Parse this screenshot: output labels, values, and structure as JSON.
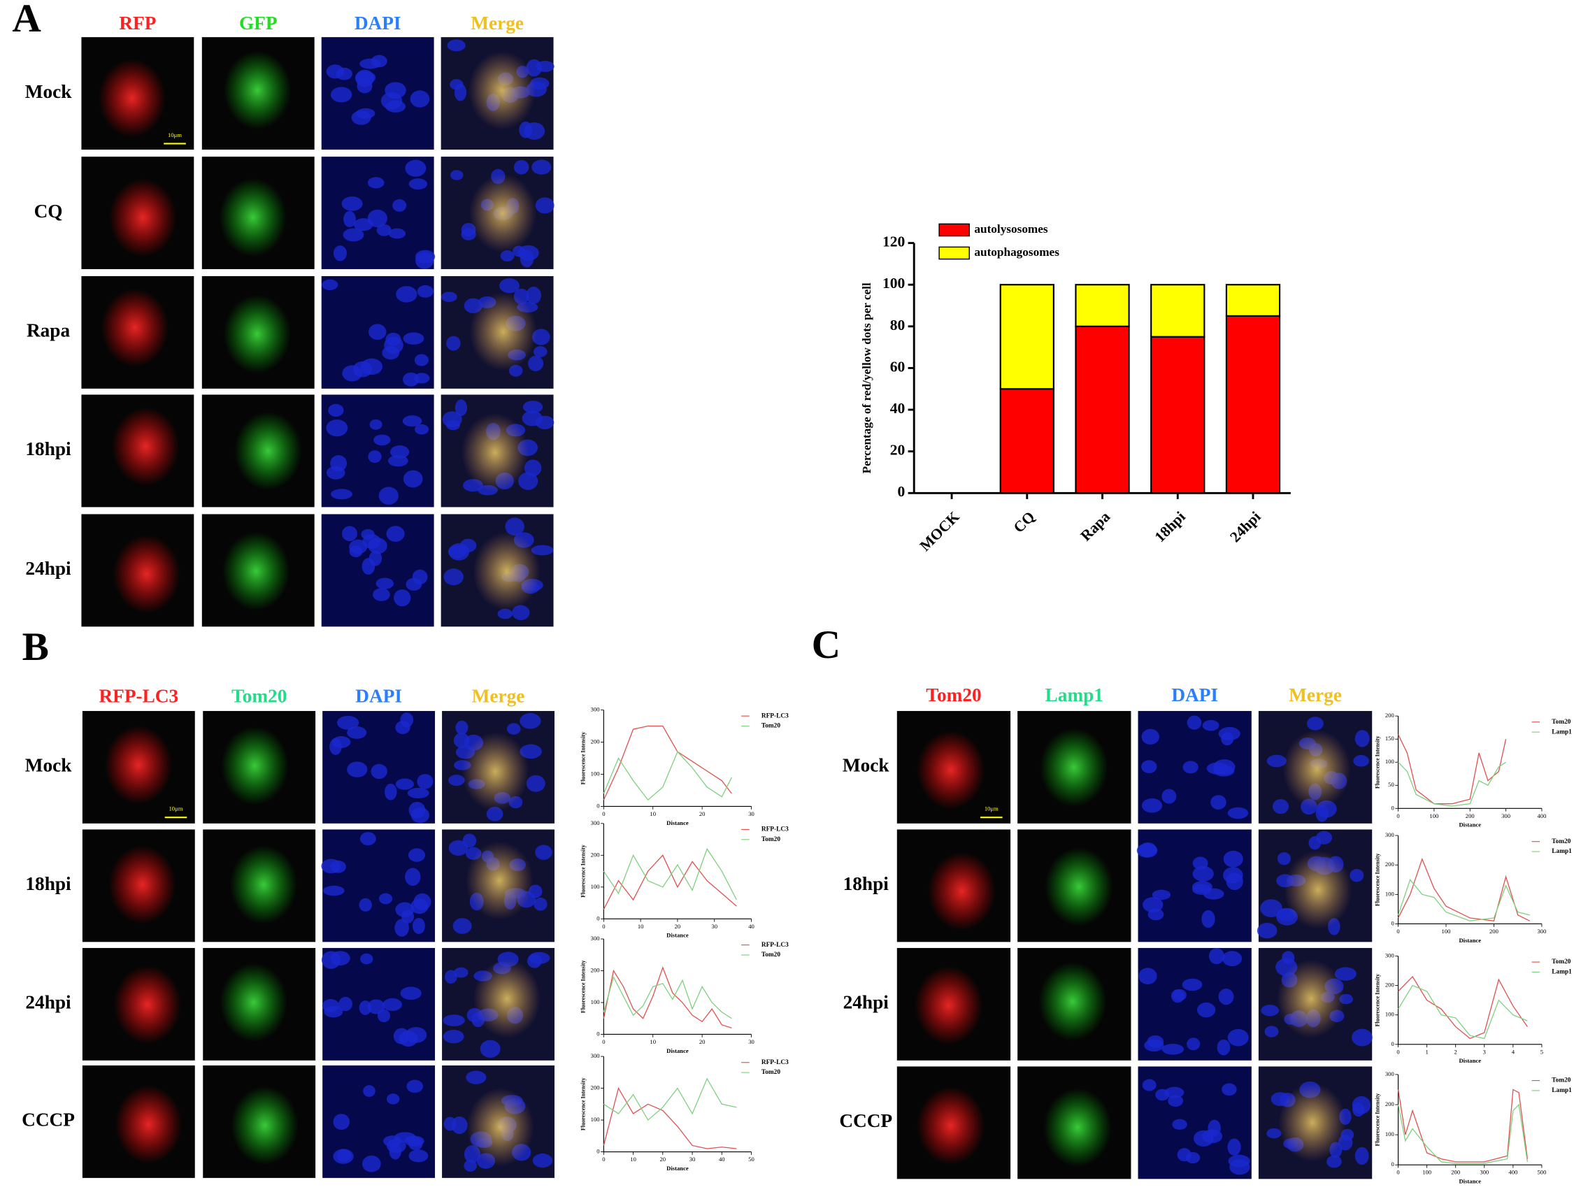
{
  "figure": {
    "panel_A": {
      "letter": "A",
      "columns": [
        "RFP",
        "GFP",
        "DAPI",
        "Merge"
      ],
      "column_colors": [
        "#ff2020",
        "#22dd22",
        "#2a7fff",
        "#f0c020"
      ],
      "rows": [
        "Mock",
        "CQ",
        "Rapa",
        "18hpi",
        "24hpi"
      ],
      "scale_bar": "10μm"
    },
    "panel_B": {
      "letter": "B",
      "columns": [
        "RFP-LC3",
        "Tom20",
        "DAPI",
        "Merge"
      ],
      "column_colors": [
        "#ff2020",
        "#22dd88",
        "#2a7fff",
        "#f0c020"
      ],
      "rows": [
        "Mock",
        "18hpi",
        "24hpi",
        "CCCP"
      ],
      "scale_bar": "10μm"
    },
    "panel_C": {
      "letter": "C",
      "columns": [
        "Tom20",
        "Lamp1",
        "DAPI",
        "Merge"
      ],
      "column_colors": [
        "#ff2020",
        "#22dd88",
        "#2a7fff",
        "#f0c020"
      ],
      "rows": [
        "Mock",
        "18hpi",
        "24hpi",
        "CCCP"
      ],
      "scale_bar": "10μm"
    }
  },
  "chart_data": [
    {
      "type": "bar",
      "stacked": true,
      "ylabel": "Percentage of red/yellow dots per cell",
      "categories": [
        "MOCK",
        "CQ",
        "Rapa",
        "18hpi",
        "24hpi"
      ],
      "series": [
        {
          "name": "autolysosomes",
          "color": "#ff0000",
          "values": [
            0,
            50,
            80,
            75,
            85
          ]
        },
        {
          "name": "autophagosomes",
          "color": "#ffff00",
          "values": [
            0,
            50,
            20,
            25,
            15
          ]
        }
      ],
      "ylim": [
        0,
        120
      ],
      "yticks": [
        0,
        20,
        40,
        60,
        80,
        100,
        120
      ],
      "grid": false,
      "legend": "top-left"
    },
    {
      "type": "line",
      "xlabel": "Distance",
      "ylabel": "Fluorescence Intensity",
      "xlim": [
        0,
        30
      ],
      "xticks": [
        0,
        10,
        20,
        30
      ],
      "ylim": [
        0,
        300
      ],
      "yticks": [
        0,
        100,
        200,
        300
      ],
      "x": [
        0,
        3,
        6,
        9,
        12,
        15,
        18,
        21,
        24,
        26
      ],
      "series": [
        {
          "name": "RFP-LC3",
          "color": "#e05050",
          "values": [
            20,
            120,
            240,
            250,
            250,
            170,
            140,
            110,
            80,
            40
          ]
        },
        {
          "name": "Tom20",
          "color": "#7ed07e",
          "values": [
            40,
            150,
            80,
            20,
            60,
            170,
            120,
            60,
            30,
            90
          ]
        }
      ]
    },
    {
      "type": "line",
      "xlabel": "Distance",
      "ylabel": "Fluorescence Intensity",
      "xlim": [
        0,
        40
      ],
      "xticks": [
        0,
        10,
        20,
        30,
        40
      ],
      "ylim": [
        0,
        300
      ],
      "yticks": [
        0,
        100,
        200,
        300
      ],
      "x": [
        0,
        4,
        8,
        12,
        16,
        20,
        24,
        28,
        32,
        36
      ],
      "series": [
        {
          "name": "RFP-LC3",
          "color": "#e05050",
          "values": [
            30,
            120,
            60,
            150,
            200,
            100,
            180,
            120,
            80,
            40
          ]
        },
        {
          "name": "Tom20",
          "color": "#7ed07e",
          "values": [
            150,
            80,
            200,
            120,
            100,
            170,
            90,
            220,
            150,
            60
          ]
        }
      ]
    },
    {
      "type": "line",
      "xlabel": "Distance",
      "ylabel": "Fluorescence Intensity",
      "xlim": [
        0,
        30
      ],
      "xticks": [
        0,
        10,
        20,
        30
      ],
      "ylim": [
        0,
        300
      ],
      "yticks": [
        0,
        100,
        200,
        300
      ],
      "x": [
        0,
        2,
        4,
        6,
        8,
        10,
        12,
        14,
        16,
        18,
        20,
        22,
        24,
        26
      ],
      "series": [
        {
          "name": "RFP-LC3",
          "color": "#e05050",
          "values": [
            50,
            200,
            150,
            80,
            50,
            120,
            210,
            130,
            100,
            60,
            40,
            80,
            30,
            20
          ]
        },
        {
          "name": "Tom20",
          "color": "#7ed07e",
          "values": [
            70,
            180,
            120,
            60,
            90,
            150,
            160,
            110,
            170,
            80,
            150,
            100,
            70,
            50
          ]
        }
      ]
    },
    {
      "type": "line",
      "xlabel": "Distance",
      "ylabel": "Fluorescence Intensity",
      "xlim": [
        0,
        50
      ],
      "xticks": [
        0,
        10,
        20,
        30,
        40,
        50
      ],
      "ylim": [
        0,
        300
      ],
      "yticks": [
        0,
        100,
        200,
        300
      ],
      "x": [
        0,
        5,
        10,
        15,
        20,
        25,
        30,
        35,
        40,
        45
      ],
      "series": [
        {
          "name": "RFP-LC3",
          "color": "#e05050",
          "values": [
            20,
            200,
            120,
            150,
            130,
            80,
            20,
            10,
            15,
            10
          ]
        },
        {
          "name": "Tom20",
          "color": "#7ed07e",
          "values": [
            150,
            120,
            180,
            100,
            140,
            200,
            120,
            230,
            150,
            140
          ]
        }
      ]
    },
    {
      "type": "line",
      "xlabel": "Distance",
      "ylabel": "Fluorescence Intensity",
      "xlim": [
        0,
        400
      ],
      "xticks": [
        0,
        100,
        200,
        300,
        400
      ],
      "ylim": [
        0,
        200
      ],
      "yticks": [
        0,
        50,
        100,
        150,
        200
      ],
      "x": [
        0,
        25,
        50,
        100,
        150,
        200,
        225,
        250,
        280,
        300
      ],
      "series": [
        {
          "name": "Tom20",
          "color": "#e05050",
          "values": [
            160,
            120,
            40,
            10,
            10,
            20,
            120,
            60,
            80,
            150
          ]
        },
        {
          "name": "Lamp1",
          "color": "#7ed07e",
          "values": [
            100,
            80,
            30,
            10,
            5,
            10,
            60,
            50,
            90,
            100
          ]
        }
      ]
    },
    {
      "type": "line",
      "xlabel": "Distance",
      "ylabel": "Fluorescence Intensity",
      "xlim": [
        0,
        300
      ],
      "xticks": [
        0,
        100,
        200,
        300
      ],
      "ylim": [
        0,
        300
      ],
      "yticks": [
        0,
        100,
        200,
        300
      ],
      "x": [
        0,
        25,
        50,
        75,
        100,
        150,
        200,
        225,
        250,
        275
      ],
      "series": [
        {
          "name": "Tom20",
          "color": "#e05050",
          "values": [
            20,
            100,
            220,
            120,
            60,
            20,
            10,
            160,
            30,
            10
          ]
        },
        {
          "name": "Lamp1",
          "color": "#7ed07e",
          "values": [
            30,
            150,
            100,
            90,
            40,
            10,
            20,
            130,
            40,
            30
          ]
        }
      ]
    },
    {
      "type": "line",
      "xlabel": "Distance",
      "ylabel": "Fluorescence Intensity",
      "xlim": [
        0,
        5
      ],
      "xticks": [
        0,
        1,
        2,
        3,
        4,
        5
      ],
      "ylim": [
        0,
        300
      ],
      "yticks": [
        0,
        100,
        200,
        300
      ],
      "x": [
        0,
        0.5,
        1,
        1.5,
        2,
        2.5,
        3,
        3.5,
        4,
        4.5
      ],
      "series": [
        {
          "name": "Tom20",
          "color": "#e05050",
          "values": [
            180,
            230,
            150,
            120,
            60,
            20,
            40,
            220,
            130,
            60
          ]
        },
        {
          "name": "Lamp1",
          "color": "#7ed07e",
          "values": [
            120,
            200,
            180,
            100,
            90,
            30,
            20,
            150,
            100,
            80
          ]
        }
      ]
    },
    {
      "type": "line",
      "xlabel": "Distance",
      "ylabel": "Fluorescence Intensity",
      "xlim": [
        0,
        500
      ],
      "xticks": [
        0,
        100,
        200,
        300,
        400,
        500
      ],
      "ylim": [
        0,
        300
      ],
      "yticks": [
        0,
        100,
        200,
        300
      ],
      "x": [
        0,
        25,
        50,
        100,
        150,
        200,
        300,
        380,
        400,
        420,
        450
      ],
      "series": [
        {
          "name": "Tom20",
          "color": "#e05050",
          "values": [
            250,
            100,
            180,
            40,
            20,
            10,
            10,
            30,
            250,
            240,
            20
          ]
        },
        {
          "name": "Lamp1",
          "color": "#7ed07e",
          "values": [
            200,
            80,
            120,
            60,
            10,
            5,
            5,
            20,
            180,
            200,
            10
          ]
        }
      ]
    }
  ]
}
